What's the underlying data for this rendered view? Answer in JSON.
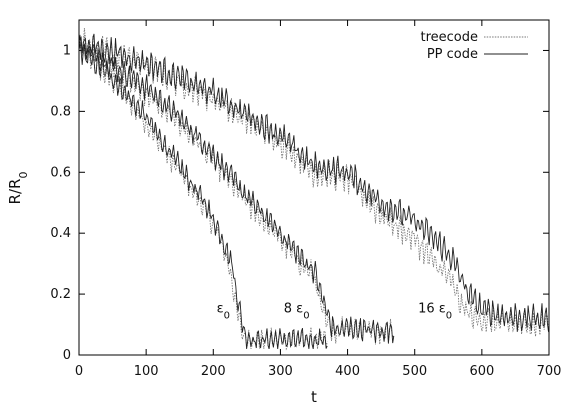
{
  "chart_data": {
    "type": "line",
    "xlabel": "t",
    "ylabel_main": "R/R",
    "ylabel_sub": "0",
    "xlim": [
      0,
      700
    ],
    "ylim": [
      0,
      1.1
    ],
    "xticks": [
      0,
      100,
      200,
      300,
      400,
      500,
      600,
      700
    ],
    "xtick_labels": [
      "0",
      "100",
      "200",
      "300",
      "400",
      "500",
      "600",
      "700"
    ],
    "yticks": [
      0,
      0.2,
      0.4,
      0.6,
      0.8,
      1
    ],
    "ytick_labels": [
      "0",
      "0.2",
      "0.4",
      "0.6",
      "0.8",
      "1"
    ],
    "legend_position": "top-right",
    "legend": [
      {
        "key": "treecode",
        "label": "treecode",
        "style": "dotted",
        "color": "#777777"
      },
      {
        "key": "pp",
        "label": "PP code",
        "style": "solid",
        "color": "#222222"
      }
    ],
    "annotations": [
      {
        "main": "ε",
        "sub": "0",
        "x": 205,
        "y": 0.14
      },
      {
        "main": "8 ε",
        "sub": "0",
        "x": 305,
        "y": 0.14
      },
      {
        "main": "16 ε",
        "sub": "0",
        "x": 505,
        "y": 0.14
      }
    ],
    "series": [
      {
        "group": "ε0",
        "code": "treecode",
        "amplitude": 0.04,
        "x": [
          0,
          50,
          100,
          150,
          190,
          210,
          225,
          235,
          245,
          260,
          300,
          340,
          370
        ],
        "y": [
          1.0,
          0.9,
          0.76,
          0.6,
          0.47,
          0.38,
          0.28,
          0.15,
          0.06,
          0.05,
          0.05,
          0.05,
          0.05
        ]
      },
      {
        "group": "ε0",
        "code": "pp",
        "amplitude": 0.04,
        "x": [
          0,
          50,
          100,
          150,
          190,
          210,
          228,
          238,
          248,
          262,
          300,
          340,
          370
        ],
        "y": [
          1.0,
          0.91,
          0.78,
          0.62,
          0.49,
          0.4,
          0.3,
          0.16,
          0.06,
          0.05,
          0.05,
          0.05,
          0.05
        ]
      },
      {
        "group": "8ε0",
        "code": "treecode",
        "amplitude": 0.045,
        "x": [
          0,
          100,
          150,
          200,
          250,
          300,
          330,
          350,
          360,
          370,
          380,
          400,
          440,
          470
        ],
        "y": [
          1.02,
          0.86,
          0.76,
          0.64,
          0.5,
          0.38,
          0.3,
          0.26,
          0.16,
          0.1,
          0.08,
          0.09,
          0.08,
          0.08
        ]
      },
      {
        "group": "8ε0",
        "code": "pp",
        "amplitude": 0.045,
        "x": [
          0,
          100,
          150,
          200,
          250,
          300,
          330,
          350,
          365,
          375,
          385,
          400,
          440,
          470
        ],
        "y": [
          1.02,
          0.88,
          0.78,
          0.66,
          0.52,
          0.4,
          0.32,
          0.28,
          0.17,
          0.1,
          0.08,
          0.09,
          0.08,
          0.08
        ]
      },
      {
        "group": "16ε0",
        "code": "treecode",
        "amplitude": 0.05,
        "x": [
          0,
          100,
          200,
          300,
          350,
          400,
          450,
          500,
          530,
          550,
          570,
          590,
          620,
          660,
          700
        ],
        "y": [
          1.03,
          0.95,
          0.84,
          0.7,
          0.6,
          0.58,
          0.46,
          0.38,
          0.3,
          0.26,
          0.16,
          0.12,
          0.11,
          0.1,
          0.11
        ]
      },
      {
        "group": "16ε0",
        "code": "pp",
        "amplitude": 0.05,
        "x": [
          0,
          100,
          200,
          300,
          350,
          400,
          450,
          500,
          530,
          555,
          580,
          600,
          630,
          670,
          700
        ],
        "y": [
          1.03,
          0.96,
          0.86,
          0.72,
          0.62,
          0.6,
          0.5,
          0.44,
          0.38,
          0.32,
          0.2,
          0.15,
          0.13,
          0.12,
          0.12
        ]
      }
    ]
  }
}
